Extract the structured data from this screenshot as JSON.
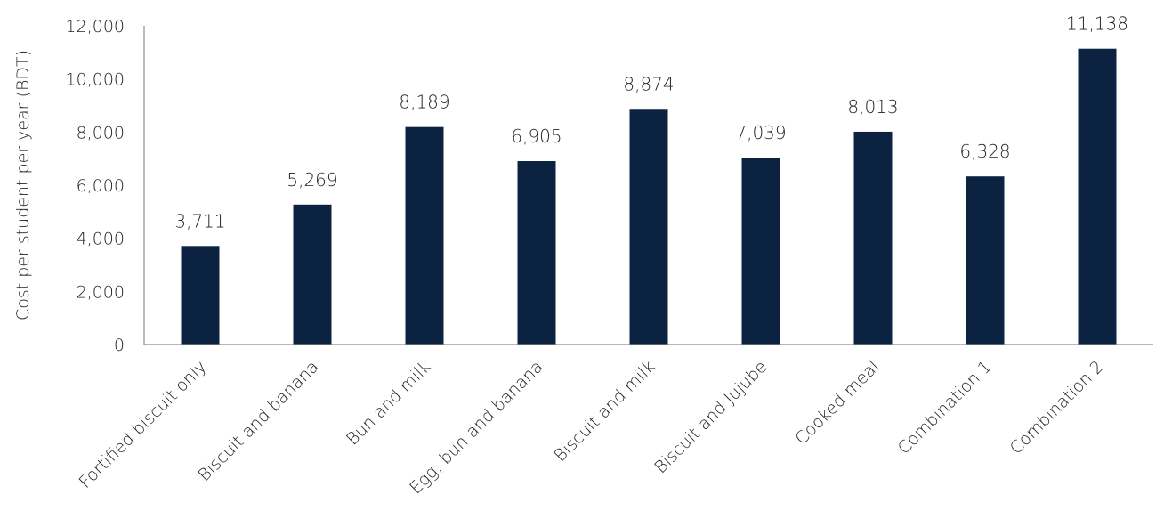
{
  "chart_data": {
    "type": "bar",
    "title": "",
    "xlabel": "",
    "ylabel": "Cost per student per year (BDT)",
    "ylim": [
      0,
      12000
    ],
    "yticks": [
      0,
      2000,
      4000,
      6000,
      8000,
      10000,
      12000
    ],
    "ytick_labels": [
      "0",
      "2,000",
      "4,000",
      "6,000",
      "8,000",
      "10,000",
      "12,000"
    ],
    "grid": false,
    "legend": "none",
    "bar_color": "#0b2240",
    "categories": [
      "Fortified biscuit only",
      "Biscuit and banana",
      "Bun and milk",
      "Egg, bun and banana",
      "Biscuit and milk",
      "Biscuit and Jujube",
      "Cooked meal",
      "Combination 1",
      "Combination 2"
    ],
    "values": [
      3711,
      5269,
      8189,
      6905,
      8874,
      7039,
      8013,
      6328,
      11138
    ],
    "value_labels": [
      "3,711",
      "5,269",
      "8,189",
      "6,905",
      "8,874",
      "7,039",
      "8,013",
      "6,328",
      "11,138"
    ]
  }
}
